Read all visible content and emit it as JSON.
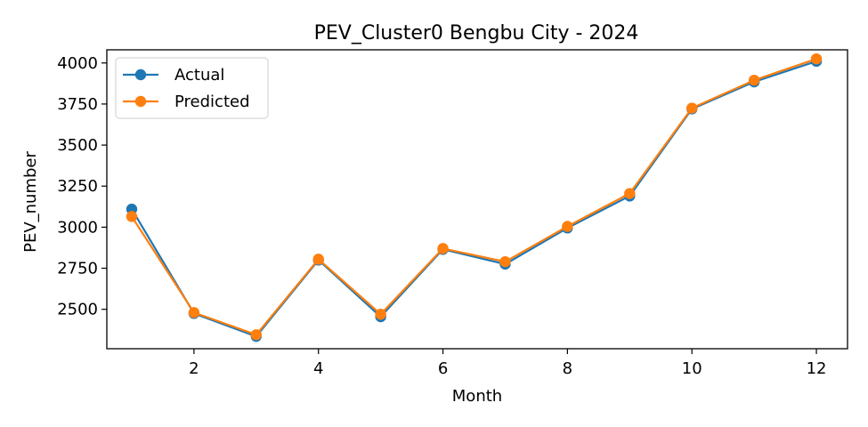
{
  "chart_data": {
    "type": "line",
    "title": "PEV_Cluster0 Bengbu City - 2024",
    "xlabel": "Month",
    "ylabel": "PEV_number",
    "x": [
      1,
      2,
      3,
      4,
      5,
      6,
      7,
      8,
      9,
      10,
      11,
      12
    ],
    "xlim": [
      0.6,
      12.5
    ],
    "ylim": [
      2260,
      4080
    ],
    "xticks": [
      2,
      4,
      6,
      8,
      10,
      12
    ],
    "yticks": [
      2500,
      2750,
      3000,
      3250,
      3500,
      3750,
      4000
    ],
    "grid": false,
    "legend_position": "upper-left",
    "series": [
      {
        "name": "Actual",
        "color": "#1f77b4",
        "values": [
          3110,
          2475,
          2335,
          2800,
          2455,
          2865,
          2775,
          2995,
          3190,
          3720,
          3885,
          4010
        ]
      },
      {
        "name": "Predicted",
        "color": "#ff7f0e",
        "values": [
          3065,
          2480,
          2345,
          2805,
          2470,
          2870,
          2790,
          3005,
          3205,
          3725,
          3895,
          4025
        ]
      }
    ]
  }
}
